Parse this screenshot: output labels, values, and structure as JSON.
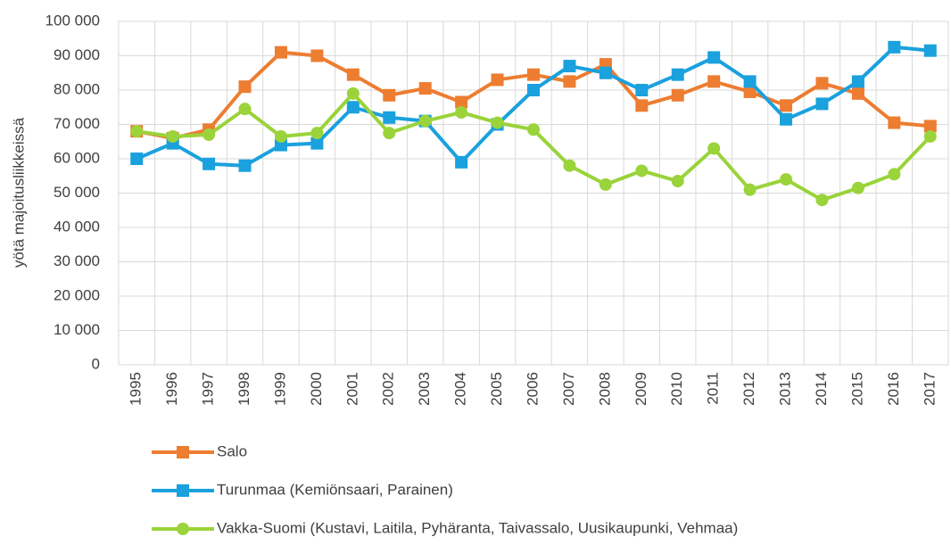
{
  "chart_data": {
    "type": "line",
    "ylabel": "yötä majoitusliikkeissä",
    "categories": [
      "1995",
      "1996",
      "1997",
      "1998",
      "1999",
      "2000",
      "2001",
      "2002",
      "2003",
      "2004",
      "2005",
      "2006",
      "2007",
      "2008",
      "2009",
      "2010",
      "2011",
      "2012",
      "2013",
      "2014",
      "2015",
      "2016",
      "2017"
    ],
    "series": [
      {
        "name": "Salo",
        "color": "#ed7d31",
        "marker": "square",
        "values": [
          68000,
          66000,
          68500,
          81000,
          91000,
          90000,
          84500,
          78500,
          80500,
          76500,
          83000,
          84500,
          82500,
          87500,
          75500,
          78500,
          82500,
          79500,
          75500,
          82000,
          79000,
          70500,
          69500
        ]
      },
      {
        "name": "Turunmaa (Kemiönsaari, Parainen)",
        "color": "#1aa1de",
        "marker": "square",
        "values": [
          60000,
          64500,
          58500,
          58000,
          64000,
          64500,
          75000,
          72000,
          71000,
          59000,
          70000,
          80000,
          87000,
          85000,
          80000,
          84500,
          89500,
          82500,
          71500,
          76000,
          82500,
          92500,
          91500
        ]
      },
      {
        "name": "Vakka-Suomi (Kustavi, Laitila, Pyhäranta, Taivassalo, Uusikaupunki, Vehmaa)",
        "color": "#9ad33a",
        "marker": "circle",
        "values": [
          68000,
          66500,
          67000,
          74500,
          66500,
          67500,
          79000,
          67500,
          71000,
          73500,
          70500,
          68500,
          58000,
          52500,
          56500,
          53500,
          63000,
          51000,
          54000,
          48000,
          51500,
          55500,
          66500
        ]
      }
    ],
    "ylim": [
      0,
      100000
    ],
    "yticks": [
      0,
      {
        "value": 10000,
        "label": "10 000"
      },
      {
        "value": 20000,
        "label": "20 000"
      },
      {
        "value": 30000,
        "label": "30 000"
      },
      {
        "value": 40000,
        "label": "40 000"
      },
      {
        "value": 50000,
        "label": "50 000"
      },
      {
        "value": 60000,
        "label": "60 000"
      },
      {
        "value": 70000,
        "label": "70 000"
      },
      {
        "value": 80000,
        "label": "80 000"
      },
      {
        "value": 90000,
        "label": "90 000"
      },
      {
        "value": 100000,
        "label": "100 000"
      }
    ],
    "grid": true,
    "legend": "bottom"
  }
}
